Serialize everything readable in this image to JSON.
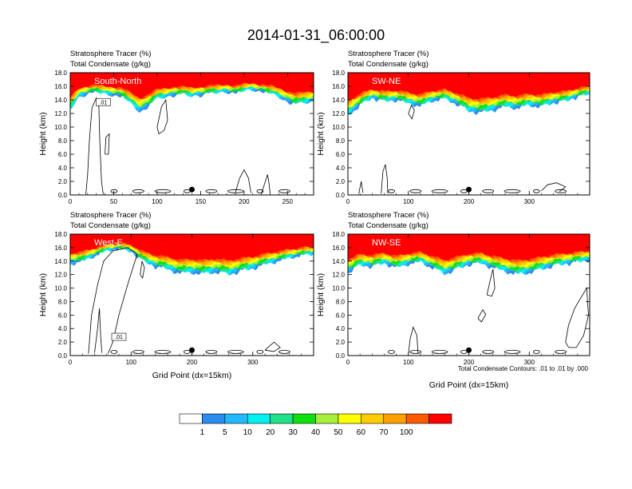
{
  "title": "2014-01-31_06:00:00",
  "colors": {
    "levels": [
      "#ffffff",
      "#2c8cf0",
      "#24b8ff",
      "#00f0f0",
      "#22e08a",
      "#10e010",
      "#a6f03c",
      "#ffff00",
      "#ffcc00",
      "#ffa000",
      "#ff5a00",
      "#ff0000"
    ],
    "contour": "#000000"
  },
  "colorbar": {
    "labels": [
      "1",
      "5",
      "10",
      "20",
      "30",
      "40",
      "50",
      "60",
      "70",
      "100"
    ]
  },
  "footnote": "Total Condensate Contours: .01 to .01 by .000",
  "chart_data": [
    {
      "type": "heatmap",
      "panel_label": "South-North",
      "header_line1": "Stratosphere Tracer   (%)",
      "header_line2": "Total Condensate   (g/kg)",
      "ylabel": "Height (km)",
      "xlabel": "",
      "ylim": [
        0,
        18
      ],
      "yticks": [
        "0.0",
        "2.0",
        "4.0",
        "6.0",
        "8.0",
        "10.0",
        "12.0",
        "14.0",
        "16.0",
        "18.0"
      ],
      "xlim": [
        0,
        280
      ],
      "xticks": [
        "0",
        "50",
        "100",
        "150",
        "200",
        "250"
      ],
      "tracer_profile": {
        "x": [
          0,
          10,
          20,
          30,
          40,
          50,
          60,
          70,
          80,
          90,
          100,
          110,
          120,
          130,
          140,
          150,
          160,
          170,
          180,
          190,
          200,
          210,
          220,
          230,
          240,
          250,
          260,
          270,
          280
        ],
        "base_height_km": [
          12.5,
          14.6,
          15.1,
          15.3,
          15.0,
          14.9,
          14.6,
          13.5,
          12.4,
          13.2,
          14.3,
          14.6,
          14.9,
          14.9,
          14.7,
          14.9,
          15.1,
          15.2,
          15.4,
          15.1,
          15.5,
          15.7,
          15.4,
          15.1,
          14.6,
          13.9,
          13.4,
          13.7,
          13.9
        ]
      },
      "contour_label": ".01",
      "marker_x": 140
    },
    {
      "type": "heatmap",
      "panel_label": "SW-NE",
      "header_line1": "Stratosphere Tracer   (%)",
      "header_line2": "Total Condensate   (g/kg)",
      "ylabel": "Height (km)",
      "xlabel": "",
      "ylim": [
        0,
        18
      ],
      "yticks": [
        "0.0",
        "2.0",
        "4.0",
        "6.0",
        "8.0",
        "10.0",
        "12.0",
        "14.0",
        "16.0",
        "18.0"
      ],
      "xlim": [
        0,
        400
      ],
      "xticks": [
        "0",
        "100",
        "200",
        "300"
      ],
      "tracer_profile": {
        "x": [
          0,
          20,
          40,
          60,
          80,
          100,
          120,
          140,
          160,
          180,
          200,
          220,
          240,
          260,
          280,
          300,
          320,
          340,
          360,
          380,
          400
        ],
        "base_height_km": [
          11.8,
          13.3,
          14.4,
          13.9,
          14.1,
          13.6,
          13.2,
          14.0,
          14.3,
          13.5,
          12.4,
          12.2,
          12.6,
          13.1,
          12.9,
          13.3,
          13.1,
          13.7,
          13.9,
          14.6,
          15.0
        ]
      },
      "contour_label": "",
      "marker_x": 200
    },
    {
      "type": "heatmap",
      "panel_label": "West-E",
      "header_line1": "Stratosphere Tracer   (%)",
      "header_line2": "Total Condensate   (g/kg)",
      "ylabel": "Height (km)",
      "xlabel": "Grid Point (dx=15km)",
      "ylim": [
        0,
        18
      ],
      "yticks": [
        "0.0",
        "2.0",
        "4.0",
        "6.0",
        "8.0",
        "10.0",
        "12.0",
        "14.0",
        "16.0",
        "18.0"
      ],
      "xlim": [
        0,
        400
      ],
      "xticks": [
        "0",
        "100",
        "200",
        "300"
      ],
      "tracer_profile": {
        "x": [
          0,
          20,
          40,
          60,
          80,
          100,
          120,
          140,
          160,
          180,
          200,
          220,
          240,
          260,
          280,
          300,
          320,
          340,
          360,
          380,
          400
        ],
        "base_height_km": [
          13.7,
          14.1,
          14.9,
          15.7,
          16.0,
          15.6,
          14.1,
          13.3,
          12.9,
          12.3,
          12.4,
          12.2,
          12.5,
          12.1,
          12.6,
          13.0,
          13.6,
          14.1,
          14.6,
          15.0,
          15.2
        ]
      },
      "contour_label": ".01",
      "marker_x": 200
    },
    {
      "type": "heatmap",
      "panel_label": "NW-SE",
      "header_line1": "Stratosphere Tracer   (%)",
      "header_line2": "Total Condensate   (g/kg)",
      "ylabel": "Height (km)",
      "xlabel": "Grid Point (dx=15km)",
      "ylim": [
        0,
        18
      ],
      "yticks": [
        "0.0",
        "2.0",
        "4.0",
        "6.0",
        "8.0",
        "10.0",
        "12.0",
        "14.0",
        "16.0",
        "18.0"
      ],
      "xlim": [
        0,
        400
      ],
      "xticks": [
        "0",
        "100",
        "200",
        "300"
      ],
      "tracer_profile": {
        "x": [
          0,
          20,
          40,
          60,
          80,
          100,
          120,
          140,
          160,
          180,
          200,
          220,
          240,
          260,
          280,
          300,
          320,
          340,
          360,
          380,
          400
        ],
        "base_height_km": [
          12.4,
          13.5,
          13.3,
          13.8,
          13.1,
          13.7,
          14.0,
          13.1,
          12.2,
          12.9,
          13.6,
          13.8,
          13.1,
          12.6,
          12.1,
          12.4,
          12.9,
          13.4,
          13.7,
          14.0,
          14.3
        ]
      },
      "contour_label": "",
      "marker_x": 200
    }
  ]
}
